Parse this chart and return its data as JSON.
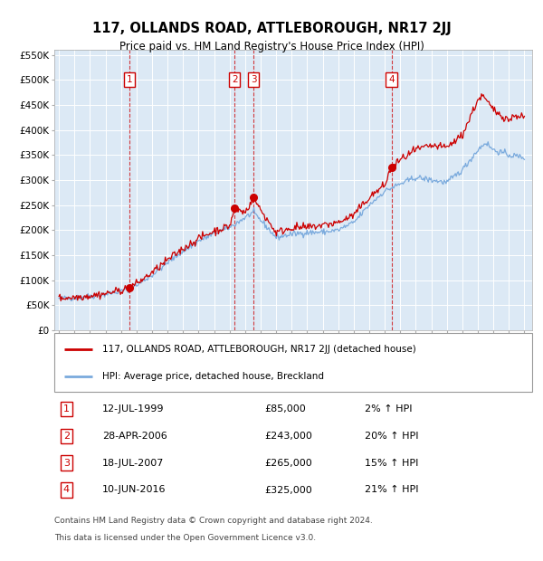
{
  "title": "117, OLLANDS ROAD, ATTLEBOROUGH, NR17 2JJ",
  "subtitle": "Price paid vs. HM Land Registry's House Price Index (HPI)",
  "legend_line1": "117, OLLANDS ROAD, ATTLEBOROUGH, NR17 2JJ (detached house)",
  "legend_line2": "HPI: Average price, detached house, Breckland",
  "footer1": "Contains HM Land Registry data © Crown copyright and database right 2024.",
  "footer2": "This data is licensed under the Open Government Licence v3.0.",
  "transactions": [
    {
      "num": 1,
      "date": "12-JUL-1999",
      "price": 85000,
      "pct": "2%",
      "x_year": 1999.53
    },
    {
      "num": 2,
      "date": "28-APR-2006",
      "price": 243000,
      "pct": "20%",
      "x_year": 2006.32
    },
    {
      "num": 3,
      "date": "18-JUL-2007",
      "price": 265000,
      "pct": "15%",
      "x_year": 2007.54
    },
    {
      "num": 4,
      "date": "10-JUN-2016",
      "price": 325000,
      "pct": "21%",
      "x_year": 2016.44
    }
  ],
  "hpi_color": "#7aaadd",
  "price_color": "#cc0000",
  "background_color": "#dce9f5",
  "grid_color": "#ffffff",
  "ylim": [
    0,
    560000
  ],
  "xlim_start": 1994.7,
  "xlim_end": 2025.5,
  "yticks": [
    0,
    50000,
    100000,
    150000,
    200000,
    250000,
    300000,
    350000,
    400000,
    450000,
    500000,
    550000
  ],
  "ytick_labels": [
    "£0",
    "£50K",
    "£100K",
    "£150K",
    "£200K",
    "£250K",
    "£300K",
    "£350K",
    "£400K",
    "£450K",
    "£500K",
    "£550K"
  ],
  "xticks": [
    1995,
    1996,
    1997,
    1998,
    1999,
    2000,
    2001,
    2002,
    2003,
    2004,
    2005,
    2006,
    2007,
    2008,
    2009,
    2010,
    2011,
    2012,
    2013,
    2014,
    2015,
    2016,
    2017,
    2018,
    2019,
    2020,
    2021,
    2022,
    2023,
    2024,
    2025
  ]
}
